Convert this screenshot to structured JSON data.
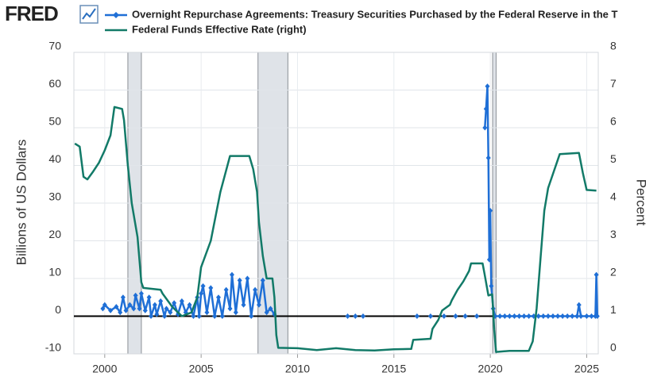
{
  "chart_data": {
    "type": "line",
    "logo": "FRED",
    "y_label": "Billions of US Dollars",
    "y2_label": "Percent",
    "xlim": [
      1998.4,
      2025.6
    ],
    "xticks": [
      2000,
      2005,
      2010,
      2015,
      2020,
      2025
    ],
    "ylim": [
      -10,
      70
    ],
    "yticks": [
      -10,
      0,
      10,
      20,
      30,
      40,
      50,
      60,
      70
    ],
    "y2lim": [
      0,
      8
    ],
    "y2ticks": [
      0,
      1,
      2,
      3,
      4,
      5,
      6,
      7,
      8
    ],
    "grid": true,
    "recessions": [
      [
        2001.2,
        2001.9
      ],
      [
        2007.95,
        2009.5
      ],
      [
        2020.12,
        2020.3
      ]
    ],
    "series": [
      {
        "name": "Overnight Repurchase Agreements: Treasury Securities Purchased by the Federal Reserve in the T",
        "color": "#1f6fd6",
        "markers": true,
        "x": [
          1999.9,
          2000.0,
          2000.3,
          2000.6,
          2000.8,
          2000.95,
          2001.1,
          2001.3,
          2001.5,
          2001.6,
          2001.8,
          2001.9,
          2002.1,
          2002.3,
          2002.4,
          2002.6,
          2002.7,
          2002.9,
          2003.1,
          2003.2,
          2003.4,
          2003.6,
          2003.8,
          2004.0,
          2004.2,
          2004.4,
          2004.6,
          2004.8,
          2004.9,
          2005.0,
          2005.1,
          2005.3,
          2005.5,
          2005.7,
          2005.9,
          2006.1,
          2006.3,
          2006.5,
          2006.6,
          2006.8,
          2007.0,
          2007.2,
          2007.4,
          2007.6,
          2007.8,
          2008.0,
          2008.2,
          2008.4,
          2008.6,
          2008.8,
          2010.0,
          2012.6,
          2012.8,
          2013.0,
          2013.2,
          2013.4,
          2015.0,
          2016.2,
          2016.5,
          2016.9,
          2017.2,
          2017.6,
          2017.9,
          2018.2,
          2018.5,
          2018.7,
          2019.0,
          2019.3,
          2019.5,
          2019.72,
          2019.78,
          2019.85,
          2019.9,
          2019.95,
          2020.0,
          2020.05,
          2020.15,
          2020.25,
          2020.5,
          2020.75,
          2021.0,
          2021.25,
          2021.5,
          2021.75,
          2022.0,
          2022.25,
          2022.5,
          2022.75,
          2023.0,
          2023.25,
          2023.5,
          2023.75,
          2024.0,
          2024.25,
          2024.5,
          2024.6,
          2024.7,
          2025.0,
          2025.25,
          2025.45,
          2025.5,
          2025.55
        ],
        "values": [
          2,
          3,
          1.5,
          2.5,
          1,
          5,
          1.5,
          3,
          2,
          5.5,
          2,
          6,
          1.5,
          5,
          0,
          3,
          0.5,
          4,
          0,
          2,
          1,
          3.5,
          0.5,
          4,
          1,
          3,
          0,
          5,
          0,
          6,
          8,
          1,
          7.5,
          0,
          5,
          0,
          7,
          2,
          11,
          1,
          9.5,
          3,
          10,
          0,
          7,
          3,
          9.5,
          1,
          2,
          0.5,
          null,
          0,
          null,
          0,
          null,
          0,
          null,
          0,
          null,
          0,
          null,
          0,
          null,
          0,
          null,
          0,
          null,
          0,
          null,
          50,
          55,
          61,
          42,
          15,
          28,
          8,
          2,
          0,
          0,
          0,
          0,
          0,
          0,
          0,
          0,
          0,
          0,
          0,
          0,
          0,
          0,
          0,
          0,
          0,
          0,
          3,
          0,
          0,
          0,
          0,
          11,
          0
        ]
      },
      {
        "name": "Federal Funds Effective Rate (right)",
        "color": "#127a68",
        "axis": "y2",
        "markers": false,
        "x": [
          1998.45,
          1998.7,
          1998.9,
          1999.1,
          1999.4,
          1999.7,
          2000.0,
          2000.3,
          2000.5,
          2000.9,
          2001.0,
          2001.2,
          2001.4,
          2001.7,
          2001.9,
          2002.0,
          2002.9,
          2003.0,
          2003.5,
          2004.0,
          2004.5,
          2004.8,
          2005.0,
          2005.5,
          2006.0,
          2006.5,
          2007.5,
          2007.7,
          2007.9,
          2008.0,
          2008.2,
          2008.4,
          2008.7,
          2008.8,
          2008.9,
          2009.0,
          2010.0,
          2011.0,
          2012.0,
          2013.0,
          2014.0,
          2015.0,
          2015.9,
          2016.0,
          2016.9,
          2017.0,
          2017.3,
          2017.5,
          2017.9,
          2018.0,
          2018.3,
          2018.6,
          2018.9,
          2019.0,
          2019.6,
          2019.7,
          2019.9,
          2020.1,
          2020.2,
          2020.3,
          2021.0,
          2022.0,
          2022.2,
          2022.4,
          2022.6,
          2022.8,
          2023.0,
          2023.3,
          2023.6,
          2024.6,
          2024.8,
          2025.0,
          2025.5
        ],
        "values": [
          5.58,
          5.5,
          4.7,
          4.63,
          4.84,
          5.07,
          5.4,
          5.8,
          6.55,
          6.5,
          6.2,
          5.0,
          4.0,
          3.1,
          1.9,
          1.75,
          1.7,
          1.6,
          1.25,
          1.0,
          1.1,
          1.5,
          2.3,
          3.0,
          4.3,
          5.25,
          5.25,
          4.9,
          4.3,
          3.5,
          2.6,
          2.0,
          2.0,
          1.5,
          0.5,
          0.16,
          0.15,
          0.1,
          0.15,
          0.1,
          0.09,
          0.12,
          0.13,
          0.37,
          0.4,
          0.66,
          0.9,
          1.15,
          1.3,
          1.42,
          1.7,
          1.92,
          2.2,
          2.4,
          2.4,
          2.13,
          1.55,
          1.58,
          0.65,
          0.05,
          0.08,
          0.08,
          0.33,
          1.2,
          2.5,
          3.8,
          4.4,
          4.85,
          5.3,
          5.33,
          4.8,
          4.35,
          4.33
        ]
      }
    ]
  }
}
